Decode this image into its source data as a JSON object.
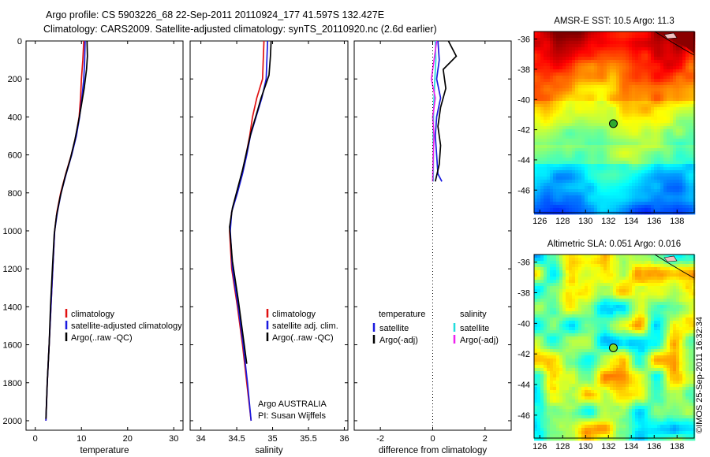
{
  "title": {
    "line1": "Argo profile: CS 5903226_68 22-Sep-2011 20110924_177 41.597S 132.427E",
    "line2": "Climatology: CARS2009. Satellite-adjusted climatology: synTS_20110920.nc (2.6d earlier)"
  },
  "watermark": "©IMOS 25-Sep-2011 16:32:34",
  "colors": {
    "clim": "#e01010",
    "sat": "#1a1adf",
    "argo": "#000000",
    "sal_sat": "#22dddd",
    "sal_argo": "#ee22ee"
  },
  "chart_data": [
    {
      "id": "temperature",
      "type": "line",
      "xlabel": "temperature",
      "ylabel": "",
      "xlim": [
        -2,
        32
      ],
      "ylim": [
        2050,
        0
      ],
      "xticks": [
        "0",
        "10",
        "20",
        "30"
      ],
      "yticks": [
        "0",
        "200",
        "400",
        "600",
        "800",
        "1000",
        "1200",
        "1400",
        "1600",
        "1800",
        "2000"
      ],
      "legend": {
        "position": "center-right",
        "entries": [
          "climatology",
          "satellite-adjusted climatology",
          "Argo(..raw -QC)"
        ]
      },
      "series": [
        {
          "name": "climatology",
          "color": "clim",
          "points": [
            [
              10.5,
              0
            ],
            [
              10.3,
              100
            ],
            [
              10.0,
              200
            ],
            [
              9.8,
              300
            ],
            [
              9.5,
              400
            ],
            [
              8.8,
              500
            ],
            [
              7.8,
              600
            ],
            [
              6.6,
              700
            ],
            [
              5.5,
              800
            ],
            [
              4.7,
              900
            ],
            [
              4.2,
              1000
            ],
            [
              3.8,
              1200
            ],
            [
              3.4,
              1400
            ],
            [
              3.0,
              1600
            ],
            [
              2.6,
              1800
            ],
            [
              2.3,
              2000
            ]
          ]
        },
        {
          "name": "satellite-adjusted climatology",
          "color": "sat",
          "points": [
            [
              10.8,
              0
            ],
            [
              10.7,
              100
            ],
            [
              10.5,
              200
            ],
            [
              10.1,
              300
            ],
            [
              9.6,
              400
            ],
            [
              8.9,
              500
            ],
            [
              7.9,
              600
            ],
            [
              6.7,
              700
            ],
            [
              5.6,
              800
            ],
            [
              4.8,
              900
            ],
            [
              4.2,
              1000
            ],
            [
              3.8,
              1200
            ],
            [
              3.4,
              1400
            ],
            [
              3.0,
              1600
            ],
            [
              2.6,
              1800
            ],
            [
              2.3,
              2000
            ]
          ]
        },
        {
          "name": "Argo(..raw -QC)",
          "color": "argo",
          "points": [
            [
              11.2,
              0
            ],
            [
              11.3,
              80
            ],
            [
              11.1,
              150
            ],
            [
              10.6,
              250
            ],
            [
              9.9,
              350
            ],
            [
              9.4,
              420
            ],
            [
              8.6,
              520
            ],
            [
              7.6,
              620
            ],
            [
              6.4,
              720
            ],
            [
              5.4,
              820
            ],
            [
              4.6,
              920
            ],
            [
              4.1,
              1020
            ],
            [
              3.7,
              1200
            ],
            [
              3.3,
              1400
            ],
            [
              3.0,
              1600
            ],
            [
              2.6,
              1800
            ],
            [
              2.3,
              1990
            ]
          ]
        }
      ]
    },
    {
      "id": "salinity",
      "type": "line",
      "xlabel": "salinity",
      "ylabel": "",
      "xlim": [
        33.85,
        36.05
      ],
      "ylim": [
        2050,
        0
      ],
      "xticks": [
        "34",
        "34.5",
        "35",
        "35.5",
        "36"
      ],
      "legend": {
        "position": "center-right",
        "entries": [
          "climatology",
          "satellite adj. clim.",
          "Argo(..raw -QC)"
        ]
      },
      "annotations": [
        "Argo AUSTRALIA",
        "PI: Susan Wijffels"
      ],
      "series": [
        {
          "name": "climatology",
          "color": "clim",
          "points": [
            [
              34.88,
              0
            ],
            [
              34.86,
              200
            ],
            [
              34.78,
              300
            ],
            [
              34.72,
              400
            ],
            [
              34.68,
              500
            ],
            [
              34.63,
              600
            ],
            [
              34.57,
              700
            ],
            [
              34.5,
              800
            ],
            [
              34.43,
              900
            ],
            [
              34.4,
              1000
            ],
            [
              34.43,
              1200
            ],
            [
              34.51,
              1400
            ],
            [
              34.58,
              1600
            ],
            [
              34.64,
              1800
            ],
            [
              34.7,
              2000
            ]
          ]
        },
        {
          "name": "satellite adj. clim.",
          "color": "sat",
          "points": [
            [
              34.93,
              0
            ],
            [
              34.92,
              100
            ],
            [
              34.91,
              200
            ],
            [
              34.85,
              300
            ],
            [
              34.77,
              400
            ],
            [
              34.69,
              500
            ],
            [
              34.64,
              600
            ],
            [
              34.58,
              700
            ],
            [
              34.51,
              800
            ],
            [
              34.43,
              900
            ],
            [
              34.41,
              1000
            ],
            [
              34.44,
              1200
            ],
            [
              34.52,
              1400
            ],
            [
              34.59,
              1600
            ],
            [
              34.65,
              1800
            ],
            [
              34.7,
              2000
            ]
          ]
        },
        {
          "name": "Argo(..raw -QC)",
          "color": "argo",
          "points": [
            [
              34.98,
              0
            ],
            [
              34.97,
              80
            ],
            [
              34.95,
              180
            ],
            [
              34.84,
              300
            ],
            [
              34.78,
              380
            ],
            [
              34.7,
              480
            ],
            [
              34.64,
              580
            ],
            [
              34.58,
              680
            ],
            [
              34.51,
              780
            ],
            [
              34.44,
              880
            ],
            [
              34.4,
              980
            ],
            [
              34.44,
              1160
            ],
            [
              34.52,
              1360
            ],
            [
              34.59,
              1560
            ],
            [
              34.64,
              1700
            ]
          ]
        }
      ]
    },
    {
      "id": "difference",
      "type": "line",
      "xlabel": "difference from climatology",
      "ylabel": "",
      "xlim": [
        -3,
        3
      ],
      "ylim": [
        2050,
        0
      ],
      "xticks": [
        "-2",
        "0",
        "2"
      ],
      "legend": {
        "position": "center",
        "headers": [
          "temperature",
          "salinity"
        ],
        "entries": [
          "satellite",
          "Argo(-adj)",
          "satellite",
          "Argo(-adj)"
        ]
      },
      "series": [
        {
          "name": "temperature satellite",
          "color": "sat",
          "points": [
            [
              0.2,
              0
            ],
            [
              0.25,
              100
            ],
            [
              0.15,
              200
            ],
            [
              0.3,
              300
            ],
            [
              0.15,
              400
            ],
            [
              0.1,
              500
            ],
            [
              0.15,
              600
            ],
            [
              0.2,
              700
            ],
            [
              0.35,
              740
            ]
          ]
        },
        {
          "name": "temperature Argo(-adj)",
          "color": "argo",
          "points": [
            [
              0.6,
              0
            ],
            [
              0.9,
              80
            ],
            [
              0.4,
              150
            ],
            [
              0.5,
              250
            ],
            [
              0.3,
              350
            ],
            [
              0.2,
              450
            ],
            [
              0.3,
              550
            ],
            [
              0.25,
              650
            ],
            [
              0.1,
              740
            ]
          ]
        },
        {
          "name": "salinity satellite",
          "color": "sal_sat",
          "points": [
            [
              0.1,
              0
            ],
            [
              0.12,
              100
            ],
            [
              0.08,
              200
            ],
            [
              0.05,
              300
            ],
            [
              0.03,
              400
            ],
            [
              0.02,
              500
            ],
            [
              0.03,
              600
            ],
            [
              0.02,
              740
            ]
          ]
        },
        {
          "name": "salinity Argo(-adj)",
          "color": "sal_argo",
          "points": [
            [
              0.15,
              0
            ],
            [
              0.05,
              100
            ],
            [
              -0.05,
              200
            ],
            [
              0.1,
              300
            ],
            [
              0.0,
              400
            ],
            [
              0.05,
              500
            ],
            [
              0.02,
              600
            ],
            [
              0.0,
              740
            ]
          ]
        }
      ]
    },
    {
      "id": "sst_map",
      "type": "heatmap",
      "title": "AMSR-E SST: 10.5 Argo: 11.3",
      "xlim": [
        125.5,
        139.5
      ],
      "ylim": [
        -47.5,
        -35.5
      ],
      "xticks": [
        "126",
        "128",
        "130",
        "132",
        "134",
        "136",
        "138"
      ],
      "yticks": [
        "-36",
        "-38",
        "-40",
        "-42",
        "-44",
        "-46"
      ],
      "marker": {
        "lon": 132.43,
        "lat": -41.6
      }
    },
    {
      "id": "sla_map",
      "type": "heatmap",
      "title": "Altimetric SLA: 0.051 Argo: 0.016",
      "xlim": [
        125.5,
        139.5
      ],
      "ylim": [
        -47.5,
        -35.5
      ],
      "xticks": [
        "126",
        "128",
        "130",
        "132",
        "134",
        "136",
        "138"
      ],
      "yticks": [
        "-36",
        "-38",
        "-40",
        "-42",
        "-44",
        "-46"
      ],
      "marker": {
        "lon": 132.43,
        "lat": -41.6
      }
    }
  ]
}
